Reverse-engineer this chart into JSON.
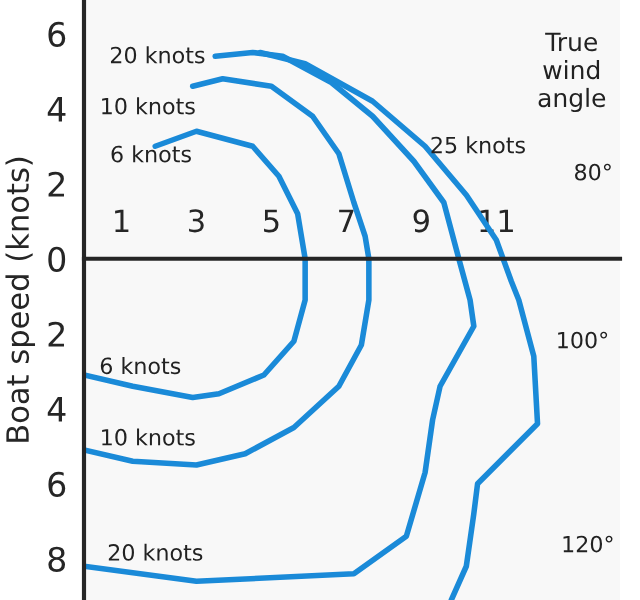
{
  "chart_data": {
    "type": "line",
    "ylabel": "Boat speed (knots)",
    "xlim": [
      0,
      14.3
    ],
    "ylim": [
      -9.1,
      6.9
    ],
    "xticks": [
      1,
      3,
      5,
      7,
      9,
      11
    ],
    "yticks": [
      {
        "value": 6,
        "label": "6"
      },
      {
        "value": 4,
        "label": "4"
      },
      {
        "value": 2,
        "label": "2"
      },
      0,
      {
        "value": -2,
        "label": "2"
      },
      {
        "value": -4,
        "label": "4"
      },
      {
        "value": -6,
        "label": "6"
      },
      {
        "value": -8,
        "label": "8"
      }
    ],
    "grid": false,
    "marker": "none",
    "line_style": "solid",
    "series": [
      {
        "color": "#1a8ad8",
        "x": [
          1.9,
          3.0,
          4.5,
          5.2,
          5.7,
          5.9,
          5.9,
          5.6,
          4.8,
          3.6,
          2.9,
          1.3,
          0
        ],
        "values": [
          3.0,
          3.4,
          3.0,
          2.2,
          1.2,
          0,
          -1.1,
          -2.2,
          -3.1,
          -3.6,
          -3.7,
          -3.4,
          -3.1
        ]
      },
      {
        "color": "#1a8ad8",
        "x": [
          2.9,
          3.7,
          5.0,
          6.1,
          6.8,
          7.2,
          7.5,
          7.6,
          7.6,
          7.4,
          6.8,
          5.6,
          4.3,
          3.0,
          1.3,
          0
        ],
        "values": [
          4.6,
          4.8,
          4.6,
          3.8,
          2.8,
          1.5,
          0.6,
          0,
          -1.1,
          -2.3,
          -3.4,
          -4.5,
          -5.2,
          -5.5,
          -5.4,
          -5.1
        ]
      },
      {
        "color": "#1a8ad8",
        "x": [
          3.5,
          4.5,
          5.3,
          6.6,
          7.7,
          8.8,
          9.6,
          10.0,
          10.3,
          10.4,
          9.5,
          9.3,
          9.1,
          8.6,
          7.2,
          3.0,
          0
        ],
        "values": [
          5.4,
          5.5,
          5.4,
          4.7,
          3.8,
          2.6,
          1.5,
          0,
          -1.1,
          -1.8,
          -3.4,
          -4.3,
          -5.7,
          -7.4,
          -8.4,
          -8.6,
          -8.2
        ]
      },
      {
        "color": "#1a8ad8",
        "x": [
          4.7,
          5.9,
          7.7,
          9.1,
          10.2,
          11.0,
          11.4,
          11.6,
          12.0,
          12.1,
          10.5,
          10.4,
          10.2,
          9.8
        ],
        "values": [
          5.5,
          5.2,
          4.2,
          3.0,
          1.7,
          0.5,
          -0.6,
          -1.1,
          -2.6,
          -4.4,
          -6.0,
          -6.8,
          -8.2,
          -9.1
        ]
      }
    ],
    "annotations": [
      "20 knots",
      "10 knots",
      "6 knots",
      "25 knots",
      "6 knots",
      "10 knots",
      "20 knots",
      "True wind angle",
      "80°",
      "100°",
      "120°"
    ]
  }
}
